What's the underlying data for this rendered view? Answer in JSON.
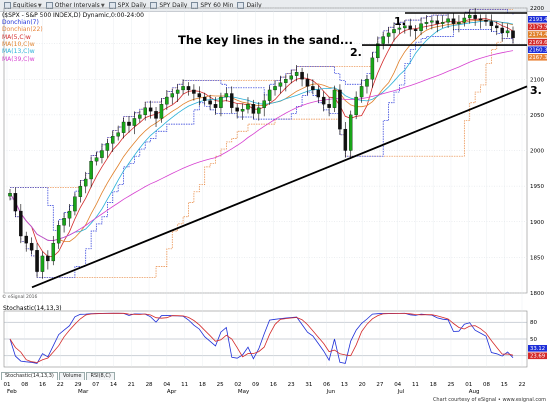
{
  "toolbar": {
    "items": [
      "Equities",
      "Other Intervals",
      "SPX Daily",
      "SPY Daily",
      "SPY 60 Min",
      "Daily"
    ]
  },
  "chart_header": "($SPX - S&P 500 INDEX,D) Dynamic,0:00-24:00",
  "indicators": [
    {
      "label": "Donchian(7)",
      "color": "#1e2fd8"
    },
    {
      "label": "Donchian(22)",
      "color": "#e8843a"
    },
    {
      "label": "MA(5,C)w",
      "color": "#d42a2a"
    },
    {
      "label": "MA(10,C)w",
      "color": "#e0802a"
    },
    {
      "label": "MA(13,C)w",
      "color": "#2ab0d8"
    },
    {
      "label": "MA(39,C)w",
      "color": "#d640d0"
    }
  ],
  "annotations": {
    "headline": "The key lines in the sand...",
    "label1": "1.",
    "label2": "2.",
    "label3": "3."
  },
  "stoch_label": "Stochastic(14,13,3)",
  "tabs": [
    "Stochastic(14,13,3)",
    "Volume",
    "RSI(8,C)"
  ],
  "footer": {
    "left": "© eSignal 2016",
    "right": "Chart courtesy of eSignal • www.esignal.com"
  },
  "price_badges": [
    "2193.42",
    "2179.97",
    "2174.45",
    "2169.61",
    "2160.36",
    "2167.33"
  ],
  "stoch_badges": [
    "33.12",
    "23.69"
  ],
  "chart_data": {
    "type": "candlestick",
    "title": "",
    "upper_y_ticks": [
      1800,
      1850,
      1900,
      1950,
      2000,
      2050,
      2100,
      2150,
      2200
    ],
    "upper_ylim": [
      1800,
      2200
    ],
    "lower_y_ticks": [
      20,
      50,
      80
    ],
    "lower_ylim": [
      0,
      100
    ],
    "x_day_ticks": [
      "01",
      "08",
      "16",
      "22",
      "29",
      "07",
      "14",
      "21",
      "28",
      "04",
      "11",
      "18",
      "25",
      "02",
      "09",
      "16",
      "23",
      "31",
      "06",
      "13",
      "20",
      "27",
      "04",
      "11",
      "18",
      "25",
      "01",
      "08",
      "15",
      "22"
    ],
    "x_month_labels": [
      "Feb",
      "Mar",
      "Apr",
      "May",
      "Jun",
      "Jul",
      "Aug"
    ],
    "close_series": [
      1940,
      1915,
      1880,
      1870,
      1860,
      1830,
      1852,
      1845,
      1870,
      1895,
      1905,
      1915,
      1935,
      1950,
      1960,
      1985,
      1990,
      2000,
      2010,
      2020,
      2025,
      2040,
      2035,
      2045,
      2050,
      2060,
      2055,
      2045,
      2065,
      2075,
      2080,
      2085,
      2090,
      2085,
      2080,
      2075,
      2070,
      2065,
      2060,
      2075,
      2080,
      2060,
      2055,
      2058,
      2065,
      2052,
      2060,
      2070,
      2085,
      2090,
      2095,
      2100,
      2105,
      2110,
      2100,
      2090,
      2085,
      2075,
      2065,
      2060,
      2085,
      2030,
      2000,
      2050,
      2075,
      2090,
      2100,
      2130,
      2150,
      2160,
      2165,
      2170,
      2172,
      2175,
      2170,
      2168,
      2178,
      2180,
      2182,
      2178,
      2180,
      2185,
      2178,
      2180,
      2186,
      2190,
      2185,
      2183,
      2181,
      2175,
      2172,
      2165,
      2168,
      2158
    ],
    "horizontal_lines": [
      2193,
      2148
    ],
    "trendline": {
      "start": 1808,
      "end": 2090
    }
  }
}
